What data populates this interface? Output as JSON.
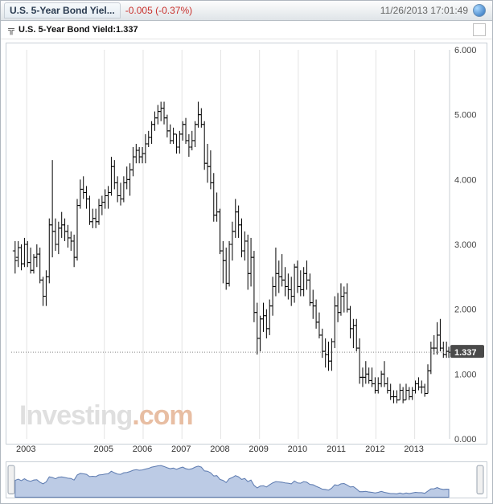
{
  "header": {
    "title": "U.S. 5-Year Bond Yiel...",
    "change": "-0.005",
    "change_pct": "(-0.37%)",
    "change_color": "#c9302c",
    "timestamp": "11/26/2013 17:01:49"
  },
  "legend": {
    "series_name": "U.S. 5-Year Bond Yield",
    "series_value": "1.337"
  },
  "chart": {
    "type": "ohlc",
    "background_color": "#ffffff",
    "grid_color": "#e3e3e3",
    "bar_color": "#000000",
    "watermark_text": "Investing",
    "watermark_suffix": ".com",
    "y_axis": {
      "min": 0.0,
      "max": 6.0,
      "ticks": [
        0.0,
        1.0,
        2.0,
        3.0,
        4.0,
        5.0,
        6.0
      ],
      "tick_labels": [
        "0.000",
        "1.000",
        "2.000",
        "3.000",
        "4.000",
        "5.000",
        "6.000"
      ]
    },
    "x_axis": {
      "ticks": [
        2003,
        2005,
        2006,
        2007,
        2008,
        2009,
        2010,
        2011,
        2012,
        2013
      ],
      "domain_min": 2002.6,
      "domain_max": 2013.9
    },
    "current_line": {
      "value": 1.337,
      "label": "1.337"
    },
    "bars": [
      {
        "t": 2002.7,
        "h": 3.05,
        "l": 2.55,
        "o": 2.9,
        "c": 2.75
      },
      {
        "t": 2002.78,
        "h": 3.05,
        "l": 2.65,
        "o": 2.8,
        "c": 2.95
      },
      {
        "t": 2002.86,
        "h": 3.0,
        "l": 2.6,
        "o": 2.95,
        "c": 2.7
      },
      {
        "t": 2002.94,
        "h": 3.1,
        "l": 2.65,
        "o": 2.7,
        "c": 3.0
      },
      {
        "t": 2003.02,
        "h": 3.05,
        "l": 2.65,
        "o": 3.0,
        "c": 2.72
      },
      {
        "t": 2003.1,
        "h": 2.95,
        "l": 2.55,
        "o": 2.72,
        "c": 2.6
      },
      {
        "t": 2003.18,
        "h": 2.85,
        "l": 2.55,
        "o": 2.6,
        "c": 2.8
      },
      {
        "t": 2003.26,
        "h": 3.0,
        "l": 2.65,
        "o": 2.8,
        "c": 2.85
      },
      {
        "t": 2003.34,
        "h": 2.95,
        "l": 2.4,
        "o": 2.85,
        "c": 2.45
      },
      {
        "t": 2003.42,
        "h": 2.5,
        "l": 2.05,
        "o": 2.45,
        "c": 2.2
      },
      {
        "t": 2003.5,
        "h": 2.6,
        "l": 2.05,
        "o": 2.2,
        "c": 2.5
      },
      {
        "t": 2003.58,
        "h": 3.4,
        "l": 2.4,
        "o": 2.5,
        "c": 3.3
      },
      {
        "t": 2003.66,
        "h": 4.3,
        "l": 2.8,
        "o": 3.3,
        "c": 3.2
      },
      {
        "t": 2003.74,
        "h": 3.4,
        "l": 2.9,
        "o": 3.2,
        "c": 3.0
      },
      {
        "t": 2003.82,
        "h": 3.35,
        "l": 2.85,
        "o": 3.0,
        "c": 3.25
      },
      {
        "t": 2003.9,
        "h": 3.5,
        "l": 3.1,
        "o": 3.25,
        "c": 3.3
      },
      {
        "t": 2003.98,
        "h": 3.4,
        "l": 3.05,
        "o": 3.3,
        "c": 3.2
      },
      {
        "t": 2004.06,
        "h": 3.3,
        "l": 2.95,
        "o": 3.2,
        "c": 3.1
      },
      {
        "t": 2004.14,
        "h": 3.2,
        "l": 2.9,
        "o": 3.1,
        "c": 3.05
      },
      {
        "t": 2004.22,
        "h": 3.15,
        "l": 2.65,
        "o": 3.05,
        "c": 2.8
      },
      {
        "t": 2004.3,
        "h": 3.7,
        "l": 2.75,
        "o": 2.8,
        "c": 3.6
      },
      {
        "t": 2004.38,
        "h": 4.0,
        "l": 3.55,
        "o": 3.6,
        "c": 3.85
      },
      {
        "t": 2004.46,
        "h": 4.05,
        "l": 3.7,
        "o": 3.85,
        "c": 3.8
      },
      {
        "t": 2004.54,
        "h": 3.9,
        "l": 3.55,
        "o": 3.8,
        "c": 3.7
      },
      {
        "t": 2004.62,
        "h": 3.75,
        "l": 3.3,
        "o": 3.7,
        "c": 3.35
      },
      {
        "t": 2004.7,
        "h": 3.55,
        "l": 3.25,
        "o": 3.35,
        "c": 3.4
      },
      {
        "t": 2004.78,
        "h": 3.55,
        "l": 3.25,
        "o": 3.4,
        "c": 3.35
      },
      {
        "t": 2004.86,
        "h": 3.7,
        "l": 3.3,
        "o": 3.35,
        "c": 3.6
      },
      {
        "t": 2004.94,
        "h": 3.75,
        "l": 3.45,
        "o": 3.6,
        "c": 3.65
      },
      {
        "t": 2005.02,
        "h": 3.85,
        "l": 3.55,
        "o": 3.65,
        "c": 3.75
      },
      {
        "t": 2005.1,
        "h": 3.9,
        "l": 3.55,
        "o": 3.75,
        "c": 3.8
      },
      {
        "t": 2005.18,
        "h": 4.35,
        "l": 3.75,
        "o": 3.8,
        "c": 4.2
      },
      {
        "t": 2005.26,
        "h": 4.3,
        "l": 3.85,
        "o": 4.2,
        "c": 3.95
      },
      {
        "t": 2005.34,
        "h": 4.05,
        "l": 3.65,
        "o": 3.95,
        "c": 3.75
      },
      {
        "t": 2005.42,
        "h": 3.95,
        "l": 3.6,
        "o": 3.75,
        "c": 3.7
      },
      {
        "t": 2005.5,
        "h": 4.05,
        "l": 3.65,
        "o": 3.7,
        "c": 3.95
      },
      {
        "t": 2005.58,
        "h": 4.2,
        "l": 3.85,
        "o": 3.95,
        "c": 4.0
      },
      {
        "t": 2005.66,
        "h": 4.25,
        "l": 3.75,
        "o": 4.0,
        "c": 4.15
      },
      {
        "t": 2005.74,
        "h": 4.5,
        "l": 4.05,
        "o": 4.15,
        "c": 4.35
      },
      {
        "t": 2005.82,
        "h": 4.55,
        "l": 4.25,
        "o": 4.35,
        "c": 4.45
      },
      {
        "t": 2005.9,
        "h": 4.5,
        "l": 4.25,
        "o": 4.45,
        "c": 4.35
      },
      {
        "t": 2005.98,
        "h": 4.5,
        "l": 4.25,
        "o": 4.35,
        "c": 4.4
      },
      {
        "t": 2006.06,
        "h": 4.7,
        "l": 4.25,
        "o": 4.4,
        "c": 4.55
      },
      {
        "t": 2006.14,
        "h": 4.75,
        "l": 4.5,
        "o": 4.55,
        "c": 4.65
      },
      {
        "t": 2006.22,
        "h": 4.9,
        "l": 4.55,
        "o": 4.65,
        "c": 4.85
      },
      {
        "t": 2006.3,
        "h": 5.05,
        "l": 4.75,
        "o": 4.85,
        "c": 4.95
      },
      {
        "t": 2006.38,
        "h": 5.15,
        "l": 4.85,
        "o": 4.95,
        "c": 5.05
      },
      {
        "t": 2006.46,
        "h": 5.2,
        "l": 4.9,
        "o": 5.05,
        "c": 5.1
      },
      {
        "t": 2006.54,
        "h": 5.2,
        "l": 4.85,
        "o": 5.1,
        "c": 4.95
      },
      {
        "t": 2006.62,
        "h": 5.0,
        "l": 4.65,
        "o": 4.95,
        "c": 4.75
      },
      {
        "t": 2006.7,
        "h": 4.85,
        "l": 4.55,
        "o": 4.75,
        "c": 4.6
      },
      {
        "t": 2006.78,
        "h": 4.8,
        "l": 4.55,
        "o": 4.6,
        "c": 4.7
      },
      {
        "t": 2006.86,
        "h": 4.7,
        "l": 4.4,
        "o": 4.7,
        "c": 4.5
      },
      {
        "t": 2006.94,
        "h": 4.75,
        "l": 4.4,
        "o": 4.5,
        "c": 4.7
      },
      {
        "t": 2007.02,
        "h": 4.9,
        "l": 4.6,
        "o": 4.7,
        "c": 4.85
      },
      {
        "t": 2007.1,
        "h": 4.95,
        "l": 4.55,
        "o": 4.85,
        "c": 4.6
      },
      {
        "t": 2007.18,
        "h": 4.7,
        "l": 4.35,
        "o": 4.6,
        "c": 4.5
      },
      {
        "t": 2007.26,
        "h": 4.75,
        "l": 4.45,
        "o": 4.5,
        "c": 4.6
      },
      {
        "t": 2007.34,
        "h": 4.9,
        "l": 4.5,
        "o": 4.6,
        "c": 4.85
      },
      {
        "t": 2007.42,
        "h": 5.2,
        "l": 4.8,
        "o": 4.85,
        "c": 5.0
      },
      {
        "t": 2007.5,
        "h": 5.1,
        "l": 4.8,
        "o": 5.0,
        "c": 4.85
      },
      {
        "t": 2007.58,
        "h": 4.9,
        "l": 4.15,
        "o": 4.85,
        "c": 4.25
      },
      {
        "t": 2007.66,
        "h": 4.55,
        "l": 3.95,
        "o": 4.25,
        "c": 4.2
      },
      {
        "t": 2007.74,
        "h": 4.45,
        "l": 3.85,
        "o": 4.2,
        "c": 3.95
      },
      {
        "t": 2007.82,
        "h": 4.1,
        "l": 3.35,
        "o": 3.95,
        "c": 3.45
      },
      {
        "t": 2007.9,
        "h": 3.8,
        "l": 3.35,
        "o": 3.45,
        "c": 3.5
      },
      {
        "t": 2007.98,
        "h": 3.55,
        "l": 2.85,
        "o": 3.5,
        "c": 2.9
      },
      {
        "t": 2008.06,
        "h": 3.05,
        "l": 2.4,
        "o": 2.9,
        "c": 2.75
      },
      {
        "t": 2008.14,
        "h": 2.95,
        "l": 2.3,
        "o": 2.75,
        "c": 2.4
      },
      {
        "t": 2008.22,
        "h": 3.05,
        "l": 2.35,
        "o": 2.4,
        "c": 3.0
      },
      {
        "t": 2008.3,
        "h": 3.35,
        "l": 2.75,
        "o": 3.0,
        "c": 3.2
      },
      {
        "t": 2008.38,
        "h": 3.7,
        "l": 3.1,
        "o": 3.2,
        "c": 3.5
      },
      {
        "t": 2008.46,
        "h": 3.6,
        "l": 3.1,
        "o": 3.5,
        "c": 3.3
      },
      {
        "t": 2008.54,
        "h": 3.4,
        "l": 2.8,
        "o": 3.3,
        "c": 2.9
      },
      {
        "t": 2008.62,
        "h": 3.2,
        "l": 2.75,
        "o": 2.9,
        "c": 3.05
      },
      {
        "t": 2008.7,
        "h": 3.15,
        "l": 2.3,
        "o": 3.05,
        "c": 2.55
      },
      {
        "t": 2008.78,
        "h": 3.1,
        "l": 2.35,
        "o": 2.55,
        "c": 2.8
      },
      {
        "t": 2008.86,
        "h": 2.9,
        "l": 1.8,
        "o": 2.8,
        "c": 1.95
      },
      {
        "t": 2008.94,
        "h": 2.1,
        "l": 1.3,
        "o": 1.95,
        "c": 1.55
      },
      {
        "t": 2009.02,
        "h": 1.9,
        "l": 1.35,
        "o": 1.55,
        "c": 1.85
      },
      {
        "t": 2009.1,
        "h": 2.1,
        "l": 1.65,
        "o": 1.85,
        "c": 1.9
      },
      {
        "t": 2009.18,
        "h": 2.0,
        "l": 1.55,
        "o": 1.9,
        "c": 1.7
      },
      {
        "t": 2009.26,
        "h": 2.15,
        "l": 1.6,
        "o": 1.7,
        "c": 2.05
      },
      {
        "t": 2009.34,
        "h": 2.5,
        "l": 1.9,
        "o": 2.05,
        "c": 2.35
      },
      {
        "t": 2009.42,
        "h": 2.95,
        "l": 2.2,
        "o": 2.35,
        "c": 2.55
      },
      {
        "t": 2009.5,
        "h": 2.75,
        "l": 2.25,
        "o": 2.55,
        "c": 2.5
      },
      {
        "t": 2009.58,
        "h": 2.85,
        "l": 2.35,
        "o": 2.5,
        "c": 2.45
      },
      {
        "t": 2009.66,
        "h": 2.65,
        "l": 2.2,
        "o": 2.45,
        "c": 2.35
      },
      {
        "t": 2009.74,
        "h": 2.55,
        "l": 2.15,
        "o": 2.35,
        "c": 2.3
      },
      {
        "t": 2009.82,
        "h": 2.5,
        "l": 2.05,
        "o": 2.3,
        "c": 2.2
      },
      {
        "t": 2009.9,
        "h": 2.7,
        "l": 2.1,
        "o": 2.2,
        "c": 2.65
      },
      {
        "t": 2009.98,
        "h": 2.75,
        "l": 2.25,
        "o": 2.65,
        "c": 2.35
      },
      {
        "t": 2010.06,
        "h": 2.6,
        "l": 2.2,
        "o": 2.35,
        "c": 2.3
      },
      {
        "t": 2010.14,
        "h": 2.65,
        "l": 2.2,
        "o": 2.3,
        "c": 2.55
      },
      {
        "t": 2010.22,
        "h": 2.75,
        "l": 2.3,
        "o": 2.55,
        "c": 2.45
      },
      {
        "t": 2010.3,
        "h": 2.55,
        "l": 2.05,
        "o": 2.45,
        "c": 2.1
      },
      {
        "t": 2010.38,
        "h": 2.3,
        "l": 1.85,
        "o": 2.1,
        "c": 2.05
      },
      {
        "t": 2010.46,
        "h": 2.15,
        "l": 1.7,
        "o": 2.05,
        "c": 1.8
      },
      {
        "t": 2010.54,
        "h": 1.95,
        "l": 1.55,
        "o": 1.8,
        "c": 1.6
      },
      {
        "t": 2010.62,
        "h": 1.7,
        "l": 1.25,
        "o": 1.6,
        "c": 1.35
      },
      {
        "t": 2010.7,
        "h": 1.55,
        "l": 1.1,
        "o": 1.35,
        "c": 1.3
      },
      {
        "t": 2010.78,
        "h": 1.5,
        "l": 1.05,
        "o": 1.3,
        "c": 1.2
      },
      {
        "t": 2010.86,
        "h": 1.55,
        "l": 1.05,
        "o": 1.2,
        "c": 1.5
      },
      {
        "t": 2010.94,
        "h": 2.2,
        "l": 1.4,
        "o": 1.5,
        "c": 2.05
      },
      {
        "t": 2011.02,
        "h": 2.25,
        "l": 1.8,
        "o": 2.05,
        "c": 1.95
      },
      {
        "t": 2011.1,
        "h": 2.4,
        "l": 1.9,
        "o": 1.95,
        "c": 2.2
      },
      {
        "t": 2011.18,
        "h": 2.35,
        "l": 1.95,
        "o": 2.2,
        "c": 2.25
      },
      {
        "t": 2011.26,
        "h": 2.4,
        "l": 1.95,
        "o": 2.25,
        "c": 2.0
      },
      {
        "t": 2011.34,
        "h": 2.05,
        "l": 1.55,
        "o": 2.0,
        "c": 1.7
      },
      {
        "t": 2011.42,
        "h": 1.85,
        "l": 1.4,
        "o": 1.7,
        "c": 1.75
      },
      {
        "t": 2011.5,
        "h": 1.85,
        "l": 1.35,
        "o": 1.75,
        "c": 1.4
      },
      {
        "t": 2011.58,
        "h": 1.55,
        "l": 0.85,
        "o": 1.4,
        "c": 0.95
      },
      {
        "t": 2011.66,
        "h": 1.1,
        "l": 0.8,
        "o": 0.95,
        "c": 0.95
      },
      {
        "t": 2011.74,
        "h": 1.2,
        "l": 0.85,
        "o": 0.95,
        "c": 1.0
      },
      {
        "t": 2011.82,
        "h": 1.1,
        "l": 0.85,
        "o": 1.0,
        "c": 0.9
      },
      {
        "t": 2011.9,
        "h": 1.1,
        "l": 0.8,
        "o": 0.9,
        "c": 0.85
      },
      {
        "t": 2011.98,
        "h": 0.95,
        "l": 0.7,
        "o": 0.85,
        "c": 0.75
      },
      {
        "t": 2012.06,
        "h": 0.95,
        "l": 0.7,
        "o": 0.75,
        "c": 0.85
      },
      {
        "t": 2012.14,
        "h": 1.05,
        "l": 0.8,
        "o": 0.85,
        "c": 1.0
      },
      {
        "t": 2012.22,
        "h": 1.2,
        "l": 0.8,
        "o": 1.0,
        "c": 0.85
      },
      {
        "t": 2012.3,
        "h": 0.95,
        "l": 0.7,
        "o": 0.85,
        "c": 0.75
      },
      {
        "t": 2012.38,
        "h": 0.85,
        "l": 0.6,
        "o": 0.75,
        "c": 0.65
      },
      {
        "t": 2012.46,
        "h": 0.75,
        "l": 0.55,
        "o": 0.65,
        "c": 0.65
      },
      {
        "t": 2012.54,
        "h": 0.75,
        "l": 0.55,
        "o": 0.65,
        "c": 0.6
      },
      {
        "t": 2012.62,
        "h": 0.85,
        "l": 0.6,
        "o": 0.6,
        "c": 0.75
      },
      {
        "t": 2012.7,
        "h": 0.8,
        "l": 0.55,
        "o": 0.75,
        "c": 0.6
      },
      {
        "t": 2012.78,
        "h": 0.85,
        "l": 0.6,
        "o": 0.6,
        "c": 0.75
      },
      {
        "t": 2012.86,
        "h": 0.8,
        "l": 0.6,
        "o": 0.75,
        "c": 0.65
      },
      {
        "t": 2012.94,
        "h": 0.8,
        "l": 0.6,
        "o": 0.65,
        "c": 0.75
      },
      {
        "t": 2013.02,
        "h": 0.9,
        "l": 0.7,
        "o": 0.75,
        "c": 0.85
      },
      {
        "t": 2013.1,
        "h": 0.95,
        "l": 0.75,
        "o": 0.85,
        "c": 0.8
      },
      {
        "t": 2013.18,
        "h": 0.9,
        "l": 0.7,
        "o": 0.8,
        "c": 0.8
      },
      {
        "t": 2013.26,
        "h": 0.85,
        "l": 0.65,
        "o": 0.8,
        "c": 0.7
      },
      {
        "t": 2013.34,
        "h": 1.15,
        "l": 0.7,
        "o": 0.7,
        "c": 1.05
      },
      {
        "t": 2013.42,
        "h": 1.5,
        "l": 1.0,
        "o": 1.05,
        "c": 1.4
      },
      {
        "t": 2013.5,
        "h": 1.6,
        "l": 1.3,
        "o": 1.4,
        "c": 1.4
      },
      {
        "t": 2013.58,
        "h": 1.8,
        "l": 1.3,
        "o": 1.4,
        "c": 1.6
      },
      {
        "t": 2013.66,
        "h": 1.85,
        "l": 1.35,
        "o": 1.6,
        "c": 1.4
      },
      {
        "t": 2013.74,
        "h": 1.5,
        "l": 1.25,
        "o": 1.4,
        "c": 1.3
      },
      {
        "t": 2013.82,
        "h": 1.5,
        "l": 1.25,
        "o": 1.3,
        "c": 1.35
      },
      {
        "t": 2013.88,
        "h": 1.42,
        "l": 1.25,
        "o": 1.35,
        "c": 1.337
      }
    ]
  },
  "navigator": {
    "fill_color": "#8fa9d4",
    "stroke_color": "#5d7bb0"
  }
}
